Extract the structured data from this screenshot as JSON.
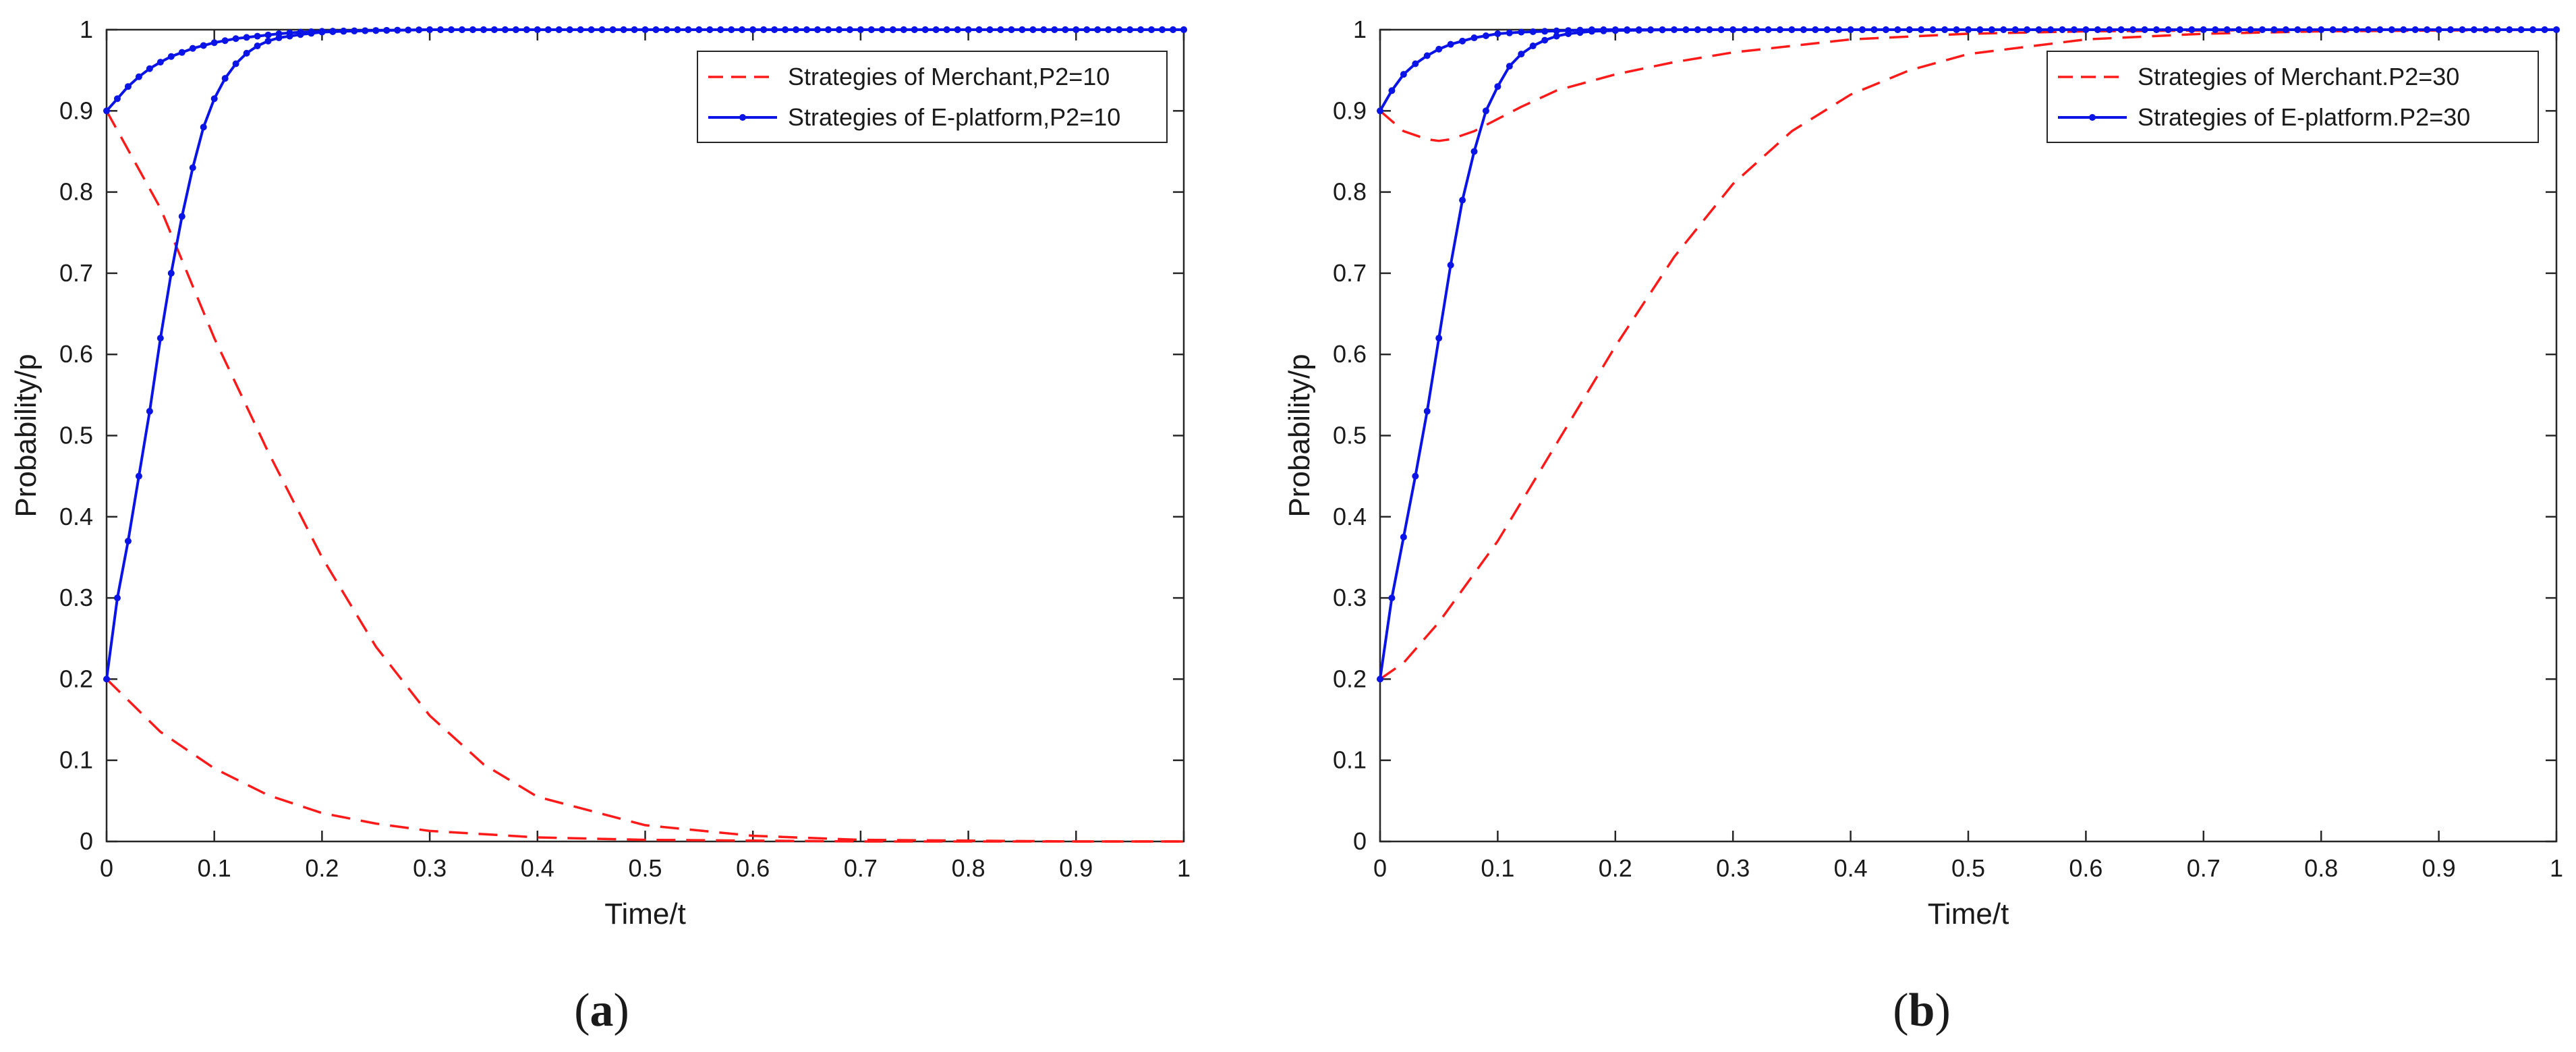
{
  "colors": {
    "merchant": "#ff1a1a",
    "platform": "#0a14e6",
    "axis": "#262626"
  },
  "panels": [
    {
      "label": "a",
      "chart_data": {
        "type": "line",
        "xlabel": "Time/t",
        "ylabel": "Probability/p",
        "xlim": [
          0,
          1
        ],
        "ylim": [
          0,
          1
        ],
        "xticks": [
          "0",
          "0.1",
          "0.2",
          "0.3",
          "0.4",
          "0.5",
          "0.6",
          "0.7",
          "0.8",
          "0.9",
          "1"
        ],
        "yticks": [
          "0",
          "0.1",
          "0.2",
          "0.3",
          "0.4",
          "0.5",
          "0.6",
          "0.7",
          "0.8",
          "0.9",
          "1"
        ],
        "legend_position": "top-right",
        "legend": [
          "Strategies of Merchant,P2=10",
          "Strategies of E-platform,P2=10"
        ],
        "series": [
          {
            "group": "merchant",
            "style": "dashed",
            "marker": "none",
            "x": [
              0,
              0.05,
              0.1,
              0.15,
              0.2,
              0.25,
              0.3,
              0.35,
              0.4,
              0.5,
              0.6,
              0.7,
              0.8,
              0.9,
              1.0
            ],
            "y": [
              0.9,
              0.78,
              0.62,
              0.48,
              0.35,
              0.24,
              0.155,
              0.095,
              0.055,
              0.02,
              0.007,
              0.002,
              0.001,
              0,
              0
            ]
          },
          {
            "group": "merchant",
            "style": "dashed",
            "marker": "none",
            "x": [
              0,
              0.05,
              0.1,
              0.15,
              0.2,
              0.25,
              0.3,
              0.4,
              0.5,
              0.6,
              0.7,
              0.8,
              0.9,
              1.0
            ],
            "y": [
              0.2,
              0.135,
              0.09,
              0.057,
              0.035,
              0.022,
              0.013,
              0.005,
              0.002,
              0.001,
              0,
              0,
              0,
              0
            ]
          },
          {
            "group": "platform",
            "style": "solid",
            "marker": "dot",
            "x": [
              0,
              0.01,
              0.02,
              0.03,
              0.04,
              0.05,
              0.06,
              0.07,
              0.08,
              0.09,
              0.1,
              0.11,
              0.12,
              0.13,
              0.14,
              0.15,
              0.16,
              0.18,
              0.2,
              0.22,
              0.25,
              0.3,
              0.35,
              0.4,
              0.5,
              0.6,
              0.7,
              0.8,
              0.9,
              1.0
            ],
            "y": [
              0.2,
              0.3,
              0.37,
              0.45,
              0.53,
              0.62,
              0.7,
              0.77,
              0.83,
              0.88,
              0.915,
              0.94,
              0.958,
              0.971,
              0.98,
              0.986,
              0.99,
              0.994,
              0.997,
              0.998,
              0.999,
              1,
              1,
              1,
              1,
              1,
              1,
              1,
              1,
              1
            ]
          },
          {
            "group": "platform",
            "style": "solid",
            "marker": "dot",
            "x": [
              0,
              0.01,
              0.02,
              0.03,
              0.04,
              0.05,
              0.06,
              0.08,
              0.1,
              0.12,
              0.14,
              0.16,
              0.18,
              0.2,
              0.25,
              0.3,
              0.35,
              0.4,
              0.5,
              0.6,
              0.7,
              0.8,
              0.9,
              1.0
            ],
            "y": [
              0.9,
              0.915,
              0.93,
              0.942,
              0.952,
              0.96,
              0.967,
              0.977,
              0.984,
              0.989,
              0.992,
              0.995,
              0.997,
              0.998,
              0.999,
              1,
              1,
              1,
              1,
              1,
              1,
              1,
              1,
              1
            ]
          }
        ]
      }
    },
    {
      "label": "b",
      "chart_data": {
        "type": "line",
        "xlabel": "Time/t",
        "ylabel": "Probability/p",
        "xlim": [
          0,
          1
        ],
        "ylim": [
          0,
          1
        ],
        "xticks": [
          "0",
          "0.1",
          "0.2",
          "0.3",
          "0.4",
          "0.5",
          "0.6",
          "0.7",
          "0.8",
          "0.9",
          "1"
        ],
        "yticks": [
          "0",
          "0.1",
          "0.2",
          "0.3",
          "0.4",
          "0.5",
          "0.6",
          "0.7",
          "0.8",
          "0.9",
          "1"
        ],
        "legend_position": "top-right",
        "legend": [
          "Strategies of Merchant.P2=30",
          "Strategies of E-platform.P2=30"
        ],
        "series": [
          {
            "group": "merchant",
            "style": "dashed",
            "marker": "none",
            "x": [
              0,
              0.02,
              0.05,
              0.1,
              0.15,
              0.2,
              0.25,
              0.3,
              0.35,
              0.4,
              0.45,
              0.5,
              0.6,
              0.7,
              0.8,
              0.9,
              1.0
            ],
            "y": [
              0.2,
              0.22,
              0.27,
              0.37,
              0.49,
              0.61,
              0.72,
              0.81,
              0.875,
              0.92,
              0.95,
              0.97,
              0.988,
              0.995,
              0.998,
              0.999,
              1
            ]
          },
          {
            "group": "merchant",
            "style": "dashed",
            "marker": "none",
            "x": [
              0,
              0.02,
              0.04,
              0.05,
              0.06,
              0.08,
              0.1,
              0.12,
              0.15,
              0.2,
              0.25,
              0.3,
              0.4,
              0.5,
              0.6,
              0.7,
              0.8,
              0.9,
              1.0
            ],
            "y": [
              0.9,
              0.875,
              0.865,
              0.863,
              0.865,
              0.875,
              0.89,
              0.905,
              0.925,
              0.945,
              0.96,
              0.972,
              0.988,
              0.995,
              0.998,
              0.999,
              1,
              1,
              1
            ]
          },
          {
            "group": "platform",
            "style": "solid",
            "marker": "dot",
            "x": [
              0,
              0.01,
              0.02,
              0.03,
              0.04,
              0.05,
              0.06,
              0.07,
              0.08,
              0.09,
              0.1,
              0.11,
              0.12,
              0.13,
              0.14,
              0.15,
              0.16,
              0.18,
              0.2,
              0.25,
              0.3,
              0.4,
              0.5,
              0.6,
              0.7,
              0.8,
              0.9,
              1.0
            ],
            "y": [
              0.2,
              0.3,
              0.375,
              0.45,
              0.53,
              0.62,
              0.71,
              0.79,
              0.85,
              0.9,
              0.93,
              0.955,
              0.97,
              0.98,
              0.987,
              0.992,
              0.995,
              0.998,
              0.999,
              1,
              1,
              1,
              1,
              1,
              1,
              1,
              1,
              1
            ]
          },
          {
            "group": "platform",
            "style": "solid",
            "marker": "dot",
            "x": [
              0,
              0.01,
              0.02,
              0.03,
              0.04,
              0.05,
              0.06,
              0.08,
              0.1,
              0.12,
              0.14,
              0.16,
              0.18,
              0.2,
              0.25,
              0.3,
              0.4,
              0.5,
              0.6,
              0.7,
              0.8,
              0.9,
              1.0
            ],
            "y": [
              0.9,
              0.925,
              0.945,
              0.958,
              0.968,
              0.976,
              0.982,
              0.99,
              0.995,
              0.997,
              0.998,
              0.999,
              1,
              1,
              1,
              1,
              1,
              1,
              1,
              1,
              1,
              1,
              1
            ]
          }
        ]
      }
    }
  ]
}
